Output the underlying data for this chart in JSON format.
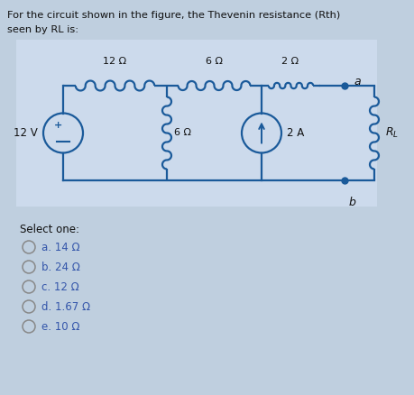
{
  "title_line1": "For the circuit shown in the figure, the Thevenin resistance (Rth)",
  "title_line2": "seen by RL is:",
  "bg_color": "#bfcfdf",
  "circuit_bg": "#ccdaec",
  "text_color": "#111111",
  "circuit_color": "#1a5a9a",
  "select_one": "Select one:",
  "options": [
    "a. 14 Ω",
    "b. 24 Ω",
    "c. 12 Ω",
    "d. 1.67 Ω",
    "e. 10 Ω"
  ],
  "resistor_labels": [
    "12 Ω",
    "6 Ω",
    "2 Ω",
    "6 Ω"
  ],
  "source_labels": [
    "12 V",
    "2 A"
  ],
  "node_labels": [
    "a",
    "b"
  ],
  "rl_label": "R_L",
  "option_color": "#3355aa"
}
